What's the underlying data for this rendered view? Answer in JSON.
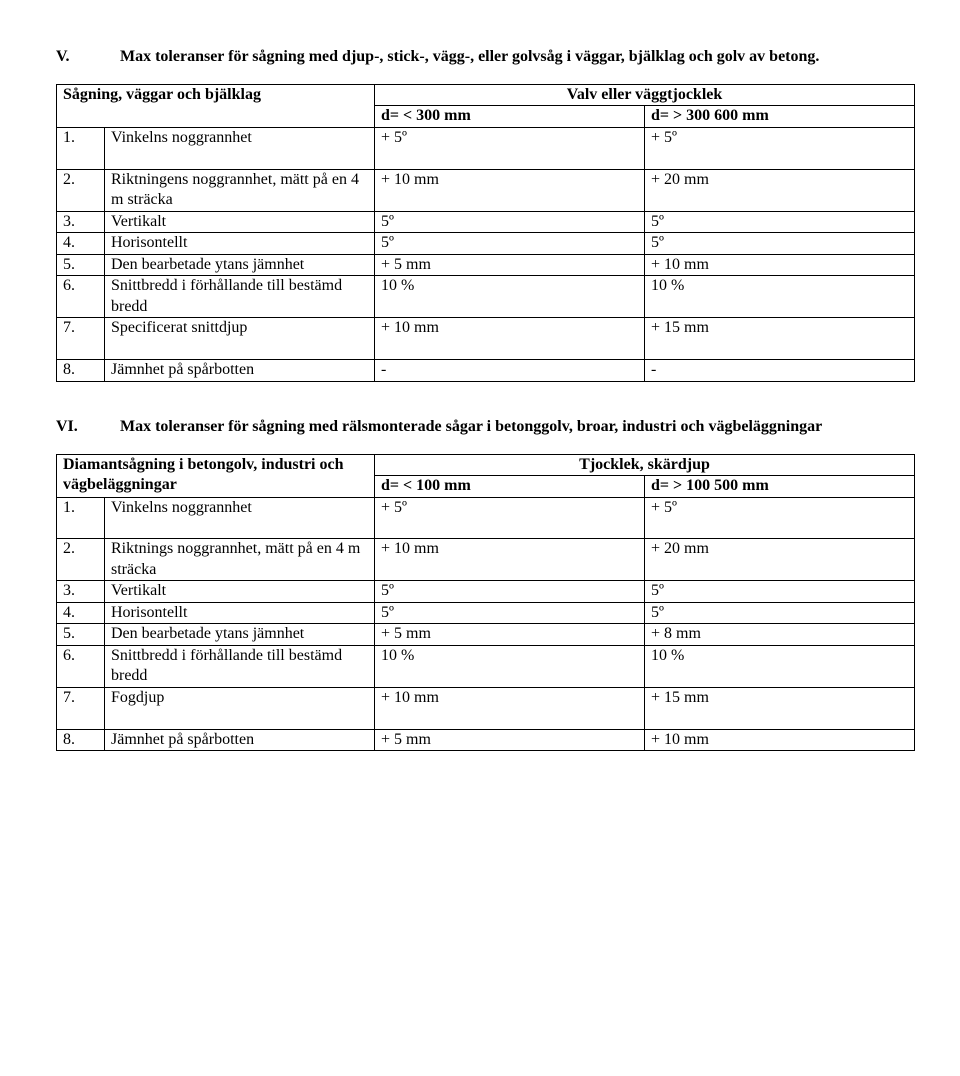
{
  "sectionV": {
    "num": "V.",
    "title": "Max toleranser för sågning med djup-, stick-, vägg-, eller golvsåg i väggar, bjälklag och golv av betong.",
    "table": {
      "header_left": "Sågning, väggar och bjälklag",
      "header_right": "Valv eller väggtjocklek",
      "col3": "d= < 300 mm",
      "col4": "d= > 300 600 mm",
      "rows": [
        {
          "n": "1.",
          "label": "Vinkelns noggrannhet",
          "c3": "+ 5º",
          "c4": "+ 5º",
          "gap": true
        },
        {
          "n": "2.",
          "label": "Riktningens noggrannhet, mätt på en 4 m sträcka",
          "c3": "+ 10 mm",
          "c4": "+ 20 mm"
        },
        {
          "n": "3.",
          "label": "Vertikalt",
          "c3": "5º",
          "c4": "5º"
        },
        {
          "n": "4.",
          "label": "Horisontellt",
          "c3": "5º",
          "c4": "5º"
        },
        {
          "n": "5.",
          "label": "Den bearbetade ytans jämnhet",
          "c3": "+ 5 mm",
          "c4": "+ 10 mm"
        },
        {
          "n": "6.",
          "label": "Snittbredd i förhållande till bestämd bredd",
          "c3": "10 %",
          "c4": "10 %"
        },
        {
          "n": "7.",
          "label": "Specificerat snittdjup",
          "c3": "+ 10 mm",
          "c4": "+ 15 mm",
          "gap": true
        },
        {
          "n": "8.",
          "label": "Jämnhet på spårbotten",
          "c3": "-",
          "c4": "-"
        }
      ]
    }
  },
  "sectionVI": {
    "num": "VI.",
    "title": "Max toleranser för sågning med rälsmonterade sågar i betonggolv, broar, industri och vägbeläggningar",
    "table": {
      "header_left": "Diamantsågning i betongolv, industri och vägbeläggningar",
      "header_right": "Tjocklek, skärdjup",
      "col3": "d= < 100 mm",
      "col4": "d= > 100 500 mm",
      "rows": [
        {
          "n": "1.",
          "label": "Vinkelns noggrannhet",
          "c3": "+ 5º",
          "c4": "+ 5º",
          "gap": true
        },
        {
          "n": "2.",
          "label": "Riktnings noggrannhet, mätt på en 4 m sträcka",
          "c3": "+ 10 mm",
          "c4": "+ 20 mm"
        },
        {
          "n": "3.",
          "label": "Vertikalt",
          "c3": "5º",
          "c4": "5º"
        },
        {
          "n": "4.",
          "label": "Horisontellt",
          "c3": "5º",
          "c4": "5º"
        },
        {
          "n": "5.",
          "label": "Den bearbetade ytans jämnhet",
          "c3": "+ 5 mm",
          "c4": "+ 8 mm"
        },
        {
          "n": "6.",
          "label": "Snittbredd i förhållande till bestämd bredd",
          "c3": "10 %",
          "c4": "10 %"
        },
        {
          "n": "7.",
          "label": "Fogdjup",
          "c3": "+ 10 mm",
          "c4": "+ 15 mm",
          "gap": true
        },
        {
          "n": "8.",
          "label": "Jämnhet på spårbotten",
          "c3": "+ 5 mm",
          "c4": "+ 10 mm"
        }
      ]
    }
  }
}
